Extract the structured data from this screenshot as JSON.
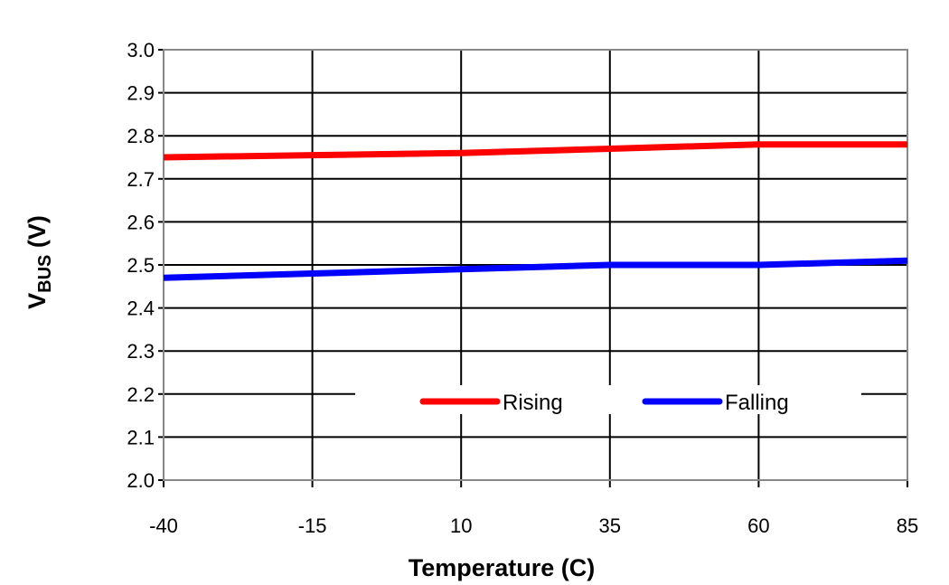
{
  "chart_data": {
    "type": "line",
    "title": "",
    "xlabel": "Temperature (C)",
    "ylabel": {
      "main": "V",
      "subscript": "BUS",
      "suffix": " (V)"
    },
    "x": [
      -40,
      -15,
      10,
      35,
      60,
      85
    ],
    "x_ticks": [
      "-40",
      "-15",
      "10",
      "35",
      "60",
      "85"
    ],
    "y_ticks": [
      "2.0",
      "2.1",
      "2.2",
      "2.3",
      "2.4",
      "2.5",
      "2.6",
      "2.7",
      "2.8",
      "2.9",
      "3.0"
    ],
    "xlim": [
      -40,
      85
    ],
    "ylim": [
      2.0,
      3.0
    ],
    "grid": true,
    "legend_position": "bottom-center-inside",
    "series": [
      {
        "name": "Rising",
        "color": "#ff0000",
        "values": [
          2.75,
          2.755,
          2.76,
          2.77,
          2.78,
          2.78
        ]
      },
      {
        "name": "Falling",
        "color": "#0000ff",
        "values": [
          2.47,
          2.48,
          2.49,
          2.5,
          2.5,
          2.51
        ]
      }
    ]
  }
}
